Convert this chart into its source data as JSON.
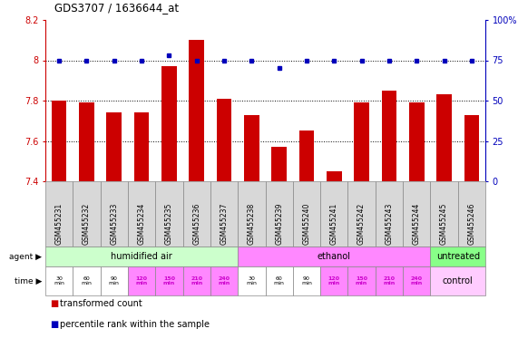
{
  "title": "GDS3707 / 1636644_at",
  "samples": [
    "GSM455231",
    "GSM455232",
    "GSM455233",
    "GSM455234",
    "GSM455235",
    "GSM455236",
    "GSM455237",
    "GSM455238",
    "GSM455239",
    "GSM455240",
    "GSM455241",
    "GSM455242",
    "GSM455243",
    "GSM455244",
    "GSM455245",
    "GSM455246"
  ],
  "bar_values": [
    7.8,
    7.79,
    7.74,
    7.74,
    7.97,
    8.1,
    7.81,
    7.73,
    7.57,
    7.65,
    7.45,
    7.79,
    7.85,
    7.79,
    7.83,
    7.73
  ],
  "percentile_values": [
    75,
    75,
    75,
    75,
    78,
    75,
    75,
    75,
    70,
    75,
    75,
    75,
    75,
    75,
    75,
    75
  ],
  "bar_color": "#cc0000",
  "dot_color": "#0000bb",
  "ylim_left": [
    7.4,
    8.2
  ],
  "ylim_right": [
    0,
    100
  ],
  "yticks_left": [
    7.4,
    7.6,
    7.8,
    8.0,
    8.2
  ],
  "yticks_right": [
    0,
    25,
    50,
    75,
    100
  ],
  "ytick_labels_left": [
    "7.4",
    "7.6",
    "7.8",
    "8",
    "8.2"
  ],
  "ytick_labels_right": [
    "0",
    "25",
    "50",
    "75",
    "100%"
  ],
  "hgrid_vals": [
    7.6,
    7.8,
    8.0
  ],
  "agent_groups": [
    {
      "label": "humidified air",
      "start": 0,
      "end": 7,
      "color": "#ccffcc"
    },
    {
      "label": "ethanol",
      "start": 7,
      "end": 14,
      "color": "#ff88ff"
    },
    {
      "label": "untreated",
      "start": 14,
      "end": 16,
      "color": "#88ff88"
    }
  ],
  "time_labels_14": [
    "30\nmin",
    "60\nmin",
    "90\nmin",
    "120\nmin",
    "150\nmin",
    "210\nmin",
    "240\nmin",
    "30\nmin",
    "60\nmin",
    "90\nmin",
    "120\nmin",
    "150\nmin",
    "210\nmin",
    "240\nmin"
  ],
  "time_colors_14": [
    "#ffffff",
    "#ffffff",
    "#ffffff",
    "#ff88ff",
    "#ff88ff",
    "#ff88ff",
    "#ff88ff",
    "#ffffff",
    "#ffffff",
    "#ffffff",
    "#ff88ff",
    "#ff88ff",
    "#ff88ff",
    "#ff88ff"
  ],
  "time_bold_14": [
    false,
    false,
    false,
    true,
    true,
    true,
    true,
    false,
    false,
    false,
    true,
    true,
    true,
    true
  ],
  "legend_bar_label": "transformed count",
  "legend_dot_label": "percentile rank within the sample",
  "agent_label": "agent",
  "time_label": "time",
  "bg_color": "#ffffff",
  "tick_color_left": "#cc0000",
  "tick_color_right": "#0000bb",
  "sample_bg": "#d8d8d8",
  "ctrl_color": "#ffccff"
}
